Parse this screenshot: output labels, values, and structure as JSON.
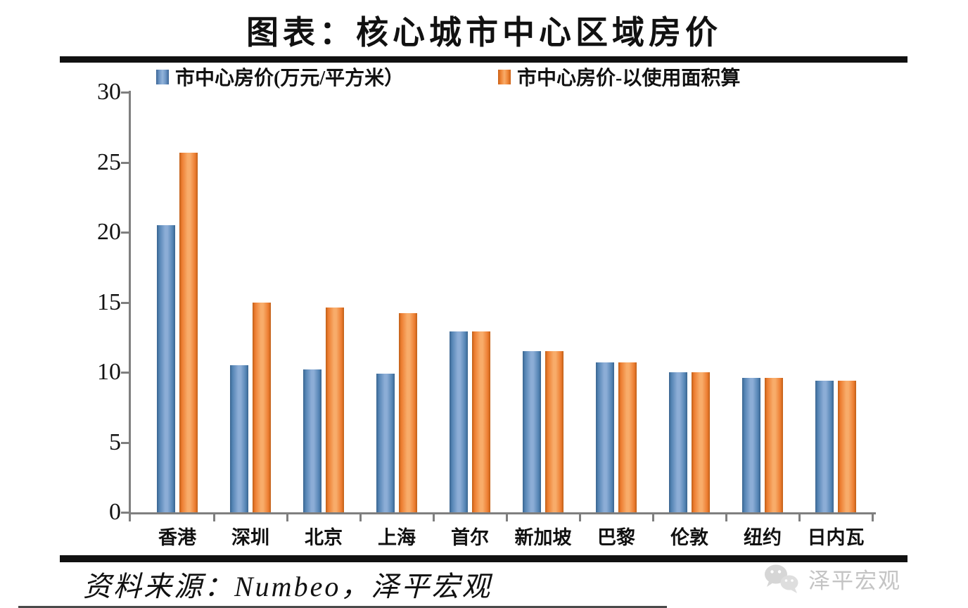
{
  "page": {
    "title": "图表：核心城市中心区域房价",
    "source": "资料来源：Numbeo，泽平宏观",
    "watermark": "泽平宏观"
  },
  "colors": {
    "series_blue": "#4f81bd",
    "series_orange": "#ed7d31",
    "axis_gray": "#7f7f7f",
    "rule_black": "#111111",
    "watermark_gray": "#c4c4c4"
  },
  "chart_data": {
    "type": "bar",
    "title": "图表：核心城市中心区域房价",
    "categories": [
      "香港",
      "深圳",
      "北京",
      "上海",
      "首尔",
      "新加坡",
      "巴黎",
      "伦敦",
      "纽约",
      "日内瓦"
    ],
    "series": [
      {
        "name": "市中心房价(万元/平方米）",
        "color": "#4f81bd",
        "values": [
          20.5,
          10.5,
          10.2,
          9.9,
          12.9,
          11.5,
          10.7,
          10.0,
          9.6,
          9.4
        ]
      },
      {
        "name": "市中心房价-以使用面积算",
        "color": "#ed7d31",
        "values": [
          25.7,
          15.0,
          14.6,
          14.2,
          12.9,
          11.5,
          10.7,
          10.0,
          9.6,
          9.4
        ]
      }
    ],
    "xlabel": "",
    "ylabel": "",
    "ylim": [
      0,
      30
    ],
    "yticks": [
      0,
      5,
      10,
      15,
      20,
      25,
      30
    ],
    "grid": false,
    "legend_position": "top"
  }
}
